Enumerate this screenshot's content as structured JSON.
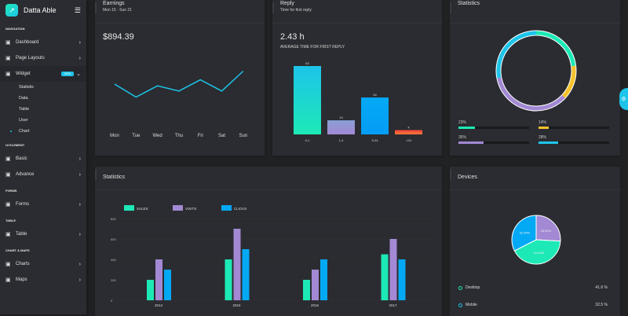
{
  "sidebar": {
    "brand": "Datta Able",
    "sections": [
      {
        "caption": "NAVIGATION",
        "items": [
          {
            "label": "Dashboard",
            "icon": "home-icon"
          },
          {
            "label": "Page Layouts",
            "icon": "layout-icon"
          },
          {
            "label": "Widget",
            "icon": "layers-icon",
            "badge": "NEW",
            "expanded": true,
            "children": [
              "Statistic",
              "Data",
              "Table",
              "User",
              "Chart"
            ],
            "current": "Chart"
          }
        ]
      },
      {
        "caption": "UI ELEMENT",
        "items": [
          {
            "label": "Basic",
            "icon": "box-icon"
          },
          {
            "label": "Advance",
            "icon": "gitlab-icon"
          }
        ]
      },
      {
        "caption": "FORMS",
        "items": [
          {
            "label": "Forms",
            "icon": "file-text-icon"
          }
        ]
      },
      {
        "caption": "TABLE",
        "items": [
          {
            "label": "Table",
            "icon": "server-icon"
          }
        ]
      },
      {
        "caption": "CHART & MAPS",
        "items": [
          {
            "label": "Charts",
            "icon": "pie-chart-icon"
          },
          {
            "label": "Maps",
            "icon": "map-icon"
          }
        ]
      }
    ]
  },
  "earnings": {
    "title": "Earnings",
    "subtitle": "Mon 15 - Sun 21",
    "amount": "$894.39"
  },
  "reply": {
    "title": "Reply",
    "subtitle": "Time for first reply",
    "value": "2.43 h",
    "caption": "AVERAGE TIME FOR FIRST REPLY"
  },
  "stats_donut": {
    "title": "Statistics",
    "bars": [
      {
        "label": "23%",
        "value": 23,
        "color": "#1de9b6"
      },
      {
        "label": "14%",
        "value": 14,
        "color": "#f4c22b"
      },
      {
        "label": "35%",
        "value": 35,
        "color": "#a389d4"
      },
      {
        "label": "28%",
        "value": 28,
        "color": "#1dc4e9"
      }
    ]
  },
  "stats_bar": {
    "title": "Statistics"
  },
  "devices": {
    "title": "Devices",
    "legend": [
      {
        "label": "Desktop",
        "value": "41.6 %",
        "color": "#1de9b6"
      },
      {
        "label": "Mobile",
        "value": "32.5 %",
        "color": "#1dc4e9"
      }
    ]
  },
  "chart_data": [
    {
      "type": "line",
      "categories": [
        "Mon",
        "Tue",
        "Wed",
        "Thu",
        "Fri",
        "Sat",
        "Sun"
      ],
      "values": [
        30,
        15,
        28,
        22,
        35,
        22,
        45
      ],
      "color": "#1dc4e9"
    },
    {
      "type": "bar",
      "categories": [
        "0-1",
        "1-4",
        "5-24",
        ">24"
      ],
      "values": [
        63,
        13,
        34,
        4
      ],
      "colors": [
        "#1de9b6",
        "#a389d4",
        "#1dc4e9",
        "#f44236"
      ]
    },
    {
      "type": "pie",
      "donut": true,
      "values": [
        23,
        14,
        35,
        28
      ],
      "colors": [
        "#1de9b6",
        "#f4c22b",
        "#a389d4",
        "#1dc4e9"
      ]
    },
    {
      "type": "bar",
      "categories": [
        "2014",
        "2015",
        "2016",
        "2017"
      ],
      "series": [
        {
          "name": "SALES",
          "values": [
            200,
            400,
            200,
            450
          ],
          "color": "#1de9b6"
        },
        {
          "name": "VISITS",
          "values": [
            400,
            700,
            300,
            600
          ],
          "color": "#a389d4"
        },
        {
          "name": "CLICKS",
          "values": [
            300,
            500,
            400,
            400
          ],
          "color": "#04a9f5"
        }
      ],
      "ylim": [
        0,
        800
      ],
      "yticks": [
        "0",
        "200",
        "400",
        "600",
        "800"
      ]
    },
    {
      "type": "pie",
      "values": [
        25.9,
        41.6,
        32.5
      ],
      "labels": [
        "25.90%",
        "41.60%",
        "32.50%"
      ],
      "colors": [
        "#a389d4",
        "#1de9b6",
        "#04a9f5"
      ]
    }
  ]
}
